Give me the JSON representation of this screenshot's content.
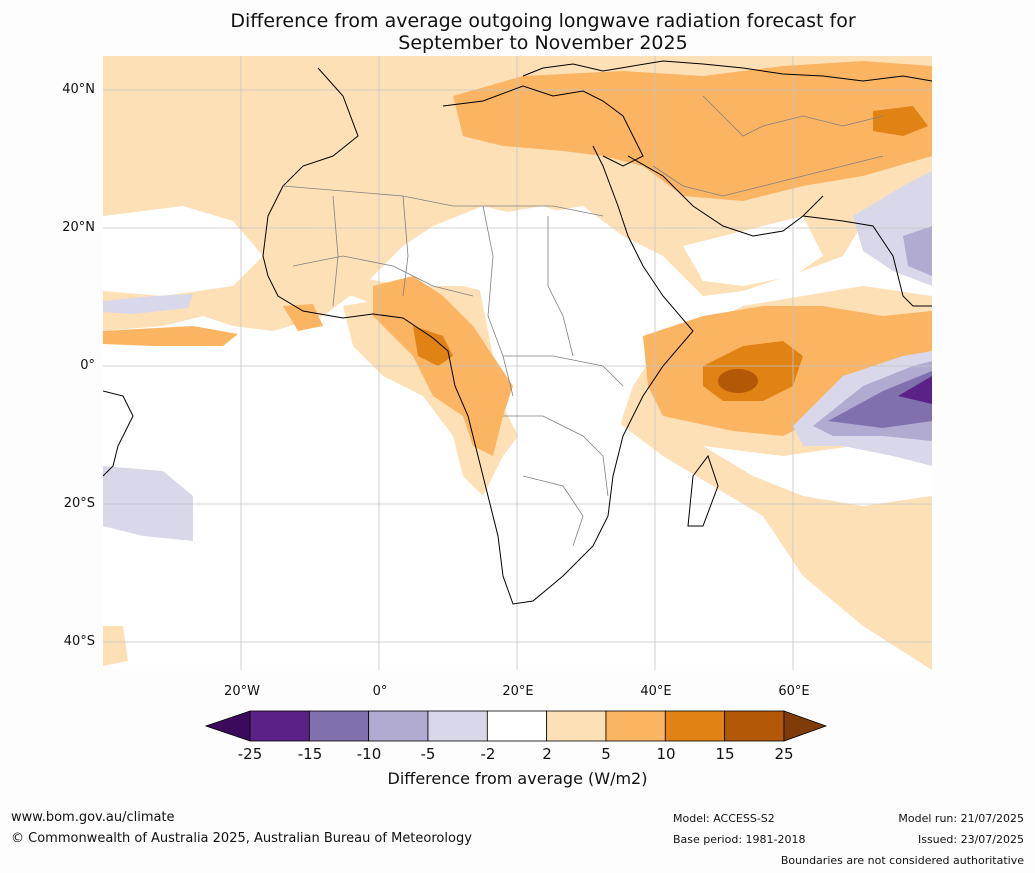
{
  "title": {
    "line1": "Difference from average outgoing longwave radiation forecast for",
    "line2": "September to November 2025"
  },
  "axes": {
    "lat_labels": [
      "40°N",
      "20°N",
      "0°",
      "20°S",
      "40°S"
    ],
    "lon_labels": [
      "20°W",
      "0°",
      "20°E",
      "40°E",
      "60°E"
    ]
  },
  "colorbar": {
    "ticks": [
      "-25",
      "-15",
      "-10",
      "-5",
      "-2",
      "2",
      "5",
      "10",
      "15",
      "25"
    ],
    "colors": [
      "#3b0a5c",
      "#5a2286",
      "#8070ad",
      "#b1aad1",
      "#d8d8ea",
      "#ffffff",
      "#fee0b6",
      "#fbb462",
      "#e08214",
      "#b35806",
      "#7f3b08"
    ],
    "label": "Difference from average (W/m2)"
  },
  "footer": {
    "website": "www.bom.gov.au/climate",
    "copyright": "© Commonwealth of Australia 2025, Australian Bureau of Meteorology",
    "model": "Model: ACCESS-S2",
    "base_period": "Base period: 1981-2018",
    "model_run": "Model run: 21/07/2025",
    "issued": "Issued: 23/07/2025",
    "disclaimer": "Boundaries are not considered authoritative"
  }
}
